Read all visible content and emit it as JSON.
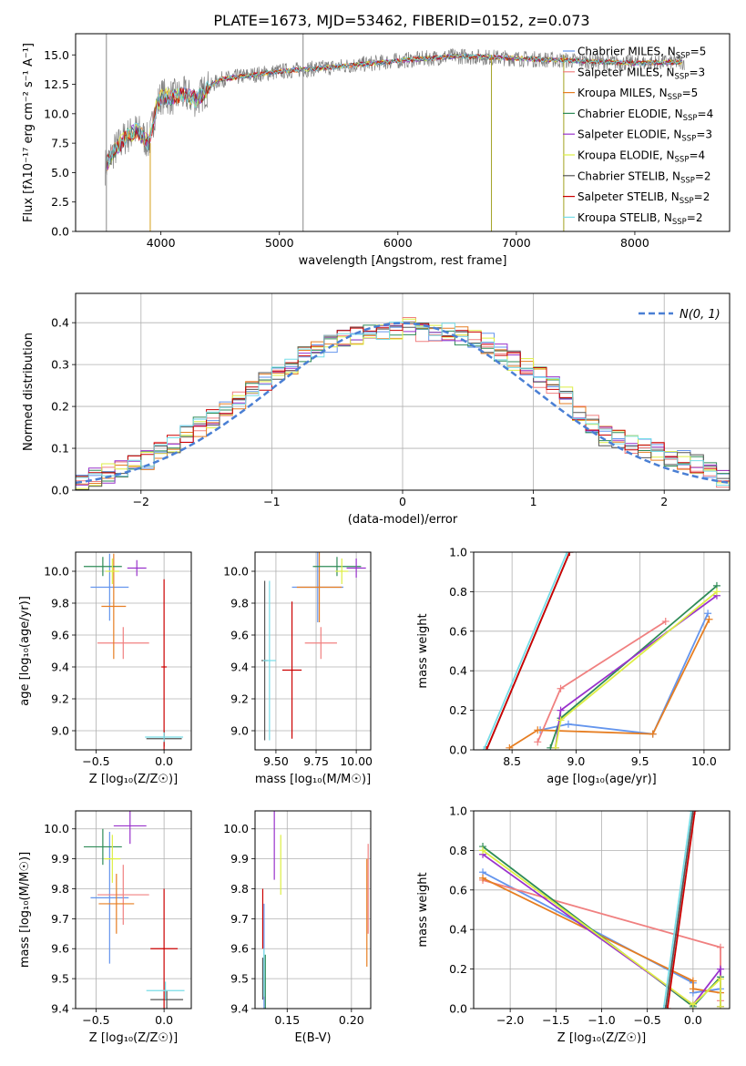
{
  "figure_title": "PLATE=1673, MJD=53462, FIBERID=0152, z=0.073",
  "series_styles": [
    {
      "name": "Chabrier MILES",
      "nssp": "5",
      "color": "#6495ED"
    },
    {
      "name": "Salpeter MILES",
      "nssp": "3",
      "color": "#F08080"
    },
    {
      "name": "Kroupa MILES",
      "nssp": "5",
      "color": "#E67E22"
    },
    {
      "name": "Chabrier ELODIE",
      "nssp": "4",
      "color": "#2E8B57"
    },
    {
      "name": "Salpeter ELODIE",
      "nssp": "3",
      "color": "#9932CC"
    },
    {
      "name": "Kroupa ELODIE",
      "nssp": "4",
      "color": "#DDEE44"
    },
    {
      "name": "Chabrier STELIB",
      "nssp": "2",
      "color": "#555555"
    },
    {
      "name": "Salpeter STELIB",
      "nssp": "2",
      "color": "#CC0000"
    },
    {
      "name": "Kroupa STELIB",
      "nssp": "2",
      "color": "#77DDE7"
    }
  ],
  "chart_data": [
    {
      "id": "spectrum",
      "type": "line",
      "title": "PLATE=1673, MJD=53462, FIBERID=0152, z=0.073",
      "xlabel": "wavelength [Angstrom, rest frame]",
      "ylabel": "Flux [fλ10⁻¹⁷ erg cm⁻² s⁻¹ A⁻¹]",
      "xlim": [
        3280,
        8800
      ],
      "ylim": [
        0,
        16.8
      ],
      "xticks": [
        4000,
        5000,
        6000,
        7000,
        8000
      ],
      "yticks": [
        0.0,
        2.5,
        5.0,
        7.5,
        10.0,
        12.5,
        15.0
      ],
      "grid": false,
      "legend_position": "right",
      "data_color": "#808080",
      "data_x_range": [
        3530,
        8420
      ],
      "continuum": {
        "x": [
          3530,
          3600,
          3700,
          3800,
          3900,
          3950,
          4000,
          4100,
          4200,
          4300,
          4400,
          4500,
          4700,
          5000,
          5500,
          6000,
          6500,
          7000,
          7500,
          8000,
          8420
        ],
        "y": [
          5.5,
          6.8,
          8.0,
          8.6,
          7.5,
          10.2,
          11.5,
          11.4,
          11.6,
          11.2,
          12.2,
          12.9,
          13.2,
          13.6,
          14.0,
          14.5,
          14.9,
          14.7,
          14.5,
          14.3,
          14.4
        ]
      },
      "spike_lines": [
        {
          "x": 3540,
          "y": [
            0,
            16.8
          ]
        },
        {
          "x": 5200,
          "y": [
            0,
            16.8
          ]
        },
        {
          "x": 6790,
          "y": [
            0,
            15.0
          ]
        },
        {
          "x": 7400,
          "y": [
            0,
            15.0
          ]
        },
        {
          "x": 3910,
          "y": [
            0,
            7.5
          ]
        }
      ]
    },
    {
      "id": "residuals",
      "type": "line",
      "xlabel": "(data-model)/error",
      "ylabel": "Normed distribution",
      "xlim": [
        -2.5,
        2.5
      ],
      "ylim": [
        0,
        0.47
      ],
      "xticks": [
        -2,
        -1,
        0,
        1,
        2
      ],
      "yticks": [
        0.0,
        0.1,
        0.2,
        0.3,
        0.4
      ],
      "grid": true,
      "legend_position": "top-right",
      "gaussian_label": "N(0, 1)",
      "gaussian_color": "#4A7FD4",
      "histogram_x": [
        -2.5,
        -2.4,
        -2.3,
        -2.2,
        -2.1,
        -2.0,
        -1.9,
        -1.8,
        -1.7,
        -1.6,
        -1.5,
        -1.4,
        -1.3,
        -1.2,
        -1.1,
        -1.0,
        -0.9,
        -0.8,
        -0.7,
        -0.6,
        -0.5,
        -0.4,
        -0.3,
        -0.2,
        -0.1,
        0.0,
        0.1,
        0.2,
        0.3,
        0.4,
        0.5,
        0.6,
        0.7,
        0.8,
        0.9,
        1.0,
        1.1,
        1.2,
        1.3,
        1.4,
        1.5,
        1.6,
        1.7,
        1.8,
        1.9,
        2.0,
        2.1,
        2.2,
        2.3,
        2.4
      ],
      "histogram_envelope": [
        0.02,
        0.03,
        0.04,
        0.05,
        0.06,
        0.07,
        0.09,
        0.11,
        0.13,
        0.15,
        0.17,
        0.19,
        0.21,
        0.24,
        0.26,
        0.28,
        0.3,
        0.32,
        0.34,
        0.35,
        0.36,
        0.37,
        0.37,
        0.38,
        0.38,
        0.39,
        0.38,
        0.38,
        0.38,
        0.37,
        0.36,
        0.35,
        0.33,
        0.31,
        0.29,
        0.27,
        0.25,
        0.23,
        0.19,
        0.16,
        0.13,
        0.12,
        0.11,
        0.1,
        0.09,
        0.08,
        0.07,
        0.06,
        0.05,
        0.03
      ]
    },
    {
      "id": "age-vs-Z",
      "type": "scatter",
      "xlabel": "Z [log₁₀(Z/Z☉)]",
      "ylabel": "age  [log₁₀(age/yr)]",
      "xlim": [
        -0.65,
        0.2
      ],
      "ylim": [
        8.88,
        10.12
      ],
      "xticks": [
        -0.5,
        0.0
      ],
      "yticks": [
        9.0,
        9.2,
        9.4,
        9.6,
        9.8,
        10.0
      ],
      "grid": true,
      "points": [
        {
          "series": 0,
          "x": -0.4,
          "y": 9.9,
          "dx": 0.14,
          "dy": 0.21
        },
        {
          "series": 1,
          "x": -0.3,
          "y": 9.55,
          "dx": 0.19,
          "dy": 0.1
        },
        {
          "series": 2,
          "x": -0.37,
          "y": 9.78,
          "dx": 0.09,
          "dy": 0.33
        },
        {
          "series": 3,
          "x": -0.45,
          "y": 10.03,
          "dx": 0.14,
          "dy": 0.06
        },
        {
          "series": 4,
          "x": -0.2,
          "y": 10.02,
          "dx": 0.07,
          "dy": 0.05
        },
        {
          "series": 5,
          "x": -0.38,
          "y": 10.0,
          "dx": 0.05,
          "dy": 0.08
        },
        {
          "series": 6,
          "x": 0.0,
          "y": 8.95,
          "dx": 0.13,
          "dy": 0.05
        },
        {
          "series": 7,
          "x": 0.0,
          "y": 9.4,
          "dx": 0.02,
          "dy": 0.55
        },
        {
          "series": 8,
          "x": 0.0,
          "y": 8.96,
          "dx": 0.14,
          "dy": 0.03
        }
      ]
    },
    {
      "id": "age-vs-mass",
      "type": "scatter",
      "xlabel": "mass [log₁₀(M/M☉)]",
      "ylabel": "",
      "xlim": [
        9.37,
        10.09
      ],
      "ylim": [
        8.88,
        10.12
      ],
      "xticks": [
        9.5,
        9.75,
        10.0
      ],
      "yticks": [
        9.0,
        9.2,
        9.4,
        9.6,
        9.8,
        10.0
      ],
      "grid": true,
      "points": [
        {
          "series": 0,
          "x": 9.76,
          "y": 9.9,
          "dx": 0.16,
          "dy": 0.22
        },
        {
          "series": 1,
          "x": 9.78,
          "y": 9.55,
          "dx": 0.1,
          "dy": 0.1
        },
        {
          "series": 2,
          "x": 9.77,
          "y": 9.9,
          "dx": 0.14,
          "dy": 0.22
        },
        {
          "series": 3,
          "x": 9.88,
          "y": 10.03,
          "dx": 0.15,
          "dy": 0.06
        },
        {
          "series": 4,
          "x": 10.0,
          "y": 10.02,
          "dx": 0.06,
          "dy": 0.06
        },
        {
          "series": 5,
          "x": 9.91,
          "y": 10.0,
          "dx": 0.04,
          "dy": 0.08
        },
        {
          "series": 6,
          "x": 9.43,
          "y": 9.44,
          "dx": 0.02,
          "dy": 0.5
        },
        {
          "series": 7,
          "x": 9.6,
          "y": 9.38,
          "dx": 0.06,
          "dy": 0.43
        },
        {
          "series": 8,
          "x": 9.46,
          "y": 9.44,
          "dx": 0.04,
          "dy": 0.5
        }
      ]
    },
    {
      "id": "mass-weight-vs-age",
      "type": "line",
      "xlabel": "age  [log₁₀(age/yr)]",
      "ylabel": "mass weight",
      "xlim": [
        8.2,
        10.2
      ],
      "ylim": [
        0,
        1.0
      ],
      "xticks": [
        8.5,
        9.0,
        9.5,
        10.0
      ],
      "yticks": [
        0.0,
        0.2,
        0.4,
        0.6,
        0.8,
        1.0
      ],
      "grid": true,
      "series": [
        {
          "series": 0,
          "x": [
            8.72,
            8.94,
            9.6,
            10.03
          ],
          "y": [
            0.1,
            0.13,
            0.08,
            0.69
          ]
        },
        {
          "series": 1,
          "x": [
            8.7,
            8.88,
            9.7
          ],
          "y": [
            0.04,
            0.31,
            0.65
          ]
        },
        {
          "series": 2,
          "x": [
            8.48,
            8.7,
            9.6,
            10.04
          ],
          "y": [
            0.01,
            0.1,
            0.08,
            0.66
          ]
        },
        {
          "series": 3,
          "x": [
            8.8,
            8.88,
            10.1
          ],
          "y": [
            0.01,
            0.16,
            0.83
          ]
        },
        {
          "series": 4,
          "x": [
            8.84,
            8.88,
            10.1
          ],
          "y": [
            0.01,
            0.2,
            0.78
          ]
        },
        {
          "series": 5,
          "x": [
            8.84,
            8.88,
            10.1
          ],
          "y": [
            0.01,
            0.15,
            0.8
          ]
        },
        {
          "series": 6,
          "x": [
            8.3,
            8.95
          ],
          "y": [
            0.0,
            1.0
          ]
        },
        {
          "series": 7,
          "x": [
            8.3,
            8.95
          ],
          "y": [
            0.0,
            1.0
          ]
        },
        {
          "series": 8,
          "x": [
            8.28,
            8.93
          ],
          "y": [
            0.0,
            1.0
          ]
        }
      ]
    },
    {
      "id": "mass-vs-Z",
      "type": "scatter",
      "xlabel": "Z [log₁₀(Z/Z☉)]",
      "ylabel": "mass [log₁₀(M/M☉)]",
      "xlim": [
        -0.65,
        0.2
      ],
      "ylim": [
        9.4,
        10.06
      ],
      "xticks": [
        -0.5,
        0.0
      ],
      "yticks": [
        9.4,
        9.5,
        9.6,
        9.7,
        9.8,
        9.9,
        10.0
      ],
      "grid": true,
      "points": [
        {
          "series": 0,
          "x": -0.4,
          "y": 9.77,
          "dx": 0.14,
          "dy": 0.22
        },
        {
          "series": 1,
          "x": -0.3,
          "y": 9.78,
          "dx": 0.19,
          "dy": 0.1
        },
        {
          "series": 2,
          "x": -0.35,
          "y": 9.75,
          "dx": 0.13,
          "dy": 0.1
        },
        {
          "series": 3,
          "x": -0.45,
          "y": 9.94,
          "dx": 0.14,
          "dy": 0.06
        },
        {
          "series": 4,
          "x": -0.25,
          "y": 10.01,
          "dx": 0.12,
          "dy": 0.06
        },
        {
          "series": 5,
          "x": -0.38,
          "y": 9.9,
          "dx": 0.06,
          "dy": 0.08
        },
        {
          "series": 6,
          "x": 0.02,
          "y": 9.43,
          "dx": 0.12,
          "dy": 0.03
        },
        {
          "series": 7,
          "x": 0.0,
          "y": 9.6,
          "dx": 0.1,
          "dy": 0.2
        },
        {
          "series": 8,
          "x": 0.01,
          "y": 9.46,
          "dx": 0.14,
          "dy": 0.03
        }
      ]
    },
    {
      "id": "mass-vs-EBV",
      "type": "scatter",
      "xlabel": "E(B-V)",
      "ylabel": "",
      "xlim": [
        0.125,
        0.215
      ],
      "ylim": [
        9.4,
        10.06
      ],
      "xticks": [
        0.15,
        0.2
      ],
      "yticks": [
        9.4,
        9.5,
        9.6,
        9.7,
        9.8,
        9.9,
        10.0
      ],
      "grid": true,
      "points": [
        {
          "series": 0,
          "x": 0.132,
          "y": 9.55,
          "dx": 0.0,
          "dy": 0.2
        },
        {
          "series": 1,
          "x": 0.213,
          "y": 9.8,
          "dx": 0.0,
          "dy": 0.15
        },
        {
          "series": 2,
          "x": 0.212,
          "y": 9.72,
          "dx": 0.0,
          "dy": 0.18
        },
        {
          "series": 3,
          "x": 0.133,
          "y": 9.48,
          "dx": 0.0,
          "dy": 0.1
        },
        {
          "series": 4,
          "x": 0.14,
          "y": 9.95,
          "dx": 0.0,
          "dy": 0.12
        },
        {
          "series": 5,
          "x": 0.145,
          "y": 9.88,
          "dx": 0.0,
          "dy": 0.1
        },
        {
          "series": 6,
          "x": 0.131,
          "y": 9.5,
          "dx": 0.0,
          "dy": 0.07
        },
        {
          "series": 7,
          "x": 0.131,
          "y": 9.7,
          "dx": 0.0,
          "dy": 0.1
        },
        {
          "series": 8,
          "x": 0.132,
          "y": 9.52,
          "dx": 0.0,
          "dy": 0.08
        }
      ]
    },
    {
      "id": "mass-weight-vs-Z",
      "type": "line",
      "xlabel": "Z [log₁₀(Z/Z☉)]",
      "ylabel": "mass weight",
      "xlim": [
        -2.4,
        0.4
      ],
      "ylim": [
        0,
        1.0
      ],
      "xticks": [
        -2.0,
        -1.5,
        -1.0,
        -0.5,
        0.0
      ],
      "yticks": [
        0.0,
        0.2,
        0.4,
        0.6,
        0.8,
        1.0
      ],
      "grid": true,
      "series": [
        {
          "series": 0,
          "x": [
            -2.3,
            0.0,
            0.0,
            0.3
          ],
          "y": [
            0.69,
            0.13,
            0.08,
            0.1
          ]
        },
        {
          "series": 1,
          "x": [
            -2.3,
            0.3,
            0.3
          ],
          "y": [
            0.65,
            0.31,
            0.04
          ]
        },
        {
          "series": 2,
          "x": [
            -2.3,
            0.0,
            0.0,
            0.3
          ],
          "y": [
            0.66,
            0.14,
            0.1,
            0.08
          ]
        },
        {
          "series": 3,
          "x": [
            -2.3,
            0.0,
            0.3,
            0.3
          ],
          "y": [
            0.82,
            0.01,
            0.16,
            0.01
          ]
        },
        {
          "series": 4,
          "x": [
            -2.3,
            0.0,
            0.3,
            0.3
          ],
          "y": [
            0.78,
            0.02,
            0.2,
            0.01
          ]
        },
        {
          "series": 5,
          "x": [
            -2.3,
            0.0,
            0.3,
            0.3
          ],
          "y": [
            0.8,
            0.02,
            0.15,
            0.01
          ]
        },
        {
          "series": 6,
          "x": [
            -0.3,
            0.0
          ],
          "y": [
            0.0,
            1.0
          ]
        },
        {
          "series": 7,
          "x": [
            -0.28,
            0.02
          ],
          "y": [
            0.0,
            1.0
          ]
        },
        {
          "series": 8,
          "x": [
            -0.32,
            -0.02
          ],
          "y": [
            0.0,
            1.0
          ]
        }
      ]
    }
  ]
}
